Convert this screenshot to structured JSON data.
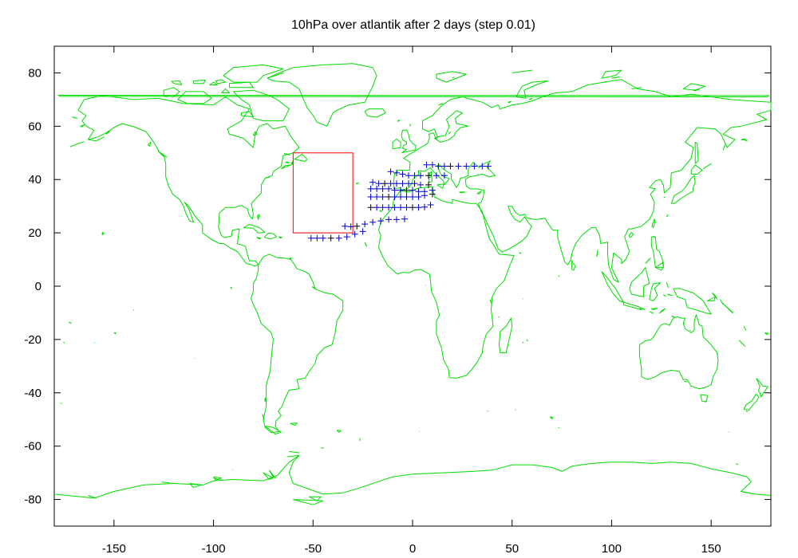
{
  "chart_data": {
    "type": "scatter",
    "title": "10hPa over atlantik after 2 days (step 0.01)",
    "xlim": [
      -180,
      180
    ],
    "ylim": [
      -90,
      90
    ],
    "xticks": [
      -150,
      -100,
      -50,
      0,
      50,
      100,
      150
    ],
    "yticks": [
      80,
      60,
      40,
      20,
      0,
      -20,
      -40,
      -60,
      -80
    ],
    "grid": false,
    "legend": "none",
    "colors": {
      "coastline": "#00dd00",
      "region_box": "#ff0000",
      "points": "#0000cc",
      "points_dark": "#000000",
      "axes": "#000000"
    },
    "region_box": {
      "lon": [
        -60,
        -30
      ],
      "lat": [
        20,
        50
      ]
    },
    "series": [
      {
        "marker": "+",
        "points": [
          [
            -51,
            18
          ],
          [
            -48,
            18
          ],
          [
            -45,
            18
          ],
          [
            -41,
            18
          ],
          [
            -37,
            18
          ],
          [
            -33,
            18.5
          ],
          [
            -29,
            19.5
          ],
          [
            -25,
            20.5
          ],
          [
            -34,
            22.5
          ],
          [
            -31,
            22.3
          ],
          [
            -28,
            22.5
          ],
          [
            -24,
            23.3
          ],
          [
            -20,
            24
          ],
          [
            -16,
            24.5
          ],
          [
            -12,
            25
          ],
          [
            -8,
            25
          ],
          [
            -4,
            25.2
          ],
          [
            -21,
            29.5
          ],
          [
            -18,
            29.5
          ],
          [
            -15,
            29.5
          ],
          [
            -12,
            29.5
          ],
          [
            -9,
            29.5
          ],
          [
            -6,
            29.5
          ],
          [
            -3,
            29.5
          ],
          [
            0,
            29.5
          ],
          [
            3,
            29.5
          ],
          [
            6,
            29.7
          ],
          [
            9,
            30.5
          ],
          [
            -21,
            33.5
          ],
          [
            -18,
            33.5
          ],
          [
            -15,
            33.5
          ],
          [
            -12,
            33.5
          ],
          [
            -9,
            33.5
          ],
          [
            -6,
            33.5
          ],
          [
            -3,
            33.5
          ],
          [
            0,
            33.5
          ],
          [
            3,
            33.5
          ],
          [
            6,
            34
          ],
          [
            10,
            34.5
          ],
          [
            -21,
            36.5
          ],
          [
            -18,
            36.5
          ],
          [
            -15,
            36.5
          ],
          [
            -12,
            36.5
          ],
          [
            -9,
            36
          ],
          [
            -6,
            36
          ],
          [
            -3,
            36
          ],
          [
            0,
            36
          ],
          [
            3,
            35.5
          ],
          [
            6,
            35.5
          ],
          [
            10,
            36
          ],
          [
            -20,
            39
          ],
          [
            -17,
            38.5
          ],
          [
            -14,
            38.5
          ],
          [
            -11,
            38.5
          ],
          [
            -8,
            38.5
          ],
          [
            -5,
            38.5
          ],
          [
            -2,
            38.5
          ],
          [
            1,
            38.5
          ],
          [
            4,
            38
          ],
          [
            8,
            38
          ],
          [
            -11,
            43
          ],
          [
            -8,
            42.5
          ],
          [
            -5,
            42
          ],
          [
            -2,
            41.5
          ],
          [
            1,
            41.5
          ],
          [
            4,
            41.5
          ],
          [
            8,
            41.5
          ],
          [
            12,
            41.5
          ],
          [
            16,
            41.5
          ],
          [
            7,
            45.5
          ],
          [
            10,
            45.5
          ],
          [
            13,
            45
          ],
          [
            16,
            45
          ],
          [
            19,
            45
          ],
          [
            23,
            45
          ],
          [
            27,
            45
          ],
          [
            31,
            45
          ],
          [
            35,
            45
          ],
          [
            38,
            45
          ]
        ]
      }
    ]
  }
}
